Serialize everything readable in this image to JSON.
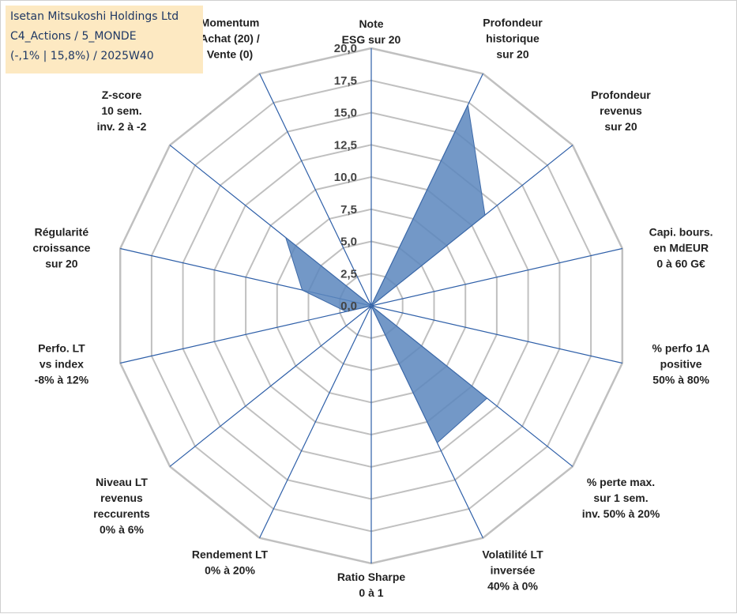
{
  "title": {
    "line1": "Isetan Mitsukoshi Holdings Ltd",
    "line2": "C4_Actions / 5_MONDE",
    "line3": "(-,1% | 15,8%) / 2025W40"
  },
  "colors": {
    "grid": "#c0c0c0",
    "spoke": "#2e5fa8",
    "fill": "#5b86bd",
    "fill_stroke": "#3e6aa8",
    "title_bg": "#fde9c2",
    "title_text": "#1f3864"
  },
  "chart_data": {
    "type": "radar",
    "title": "Isetan Mitsukoshi Holdings Ltd",
    "rmin": 0,
    "rmax": 20,
    "tick_step": 2.5,
    "ticks": [
      "0,0",
      "2,5",
      "5,0",
      "7,5",
      "10,0",
      "12,5",
      "15,0",
      "17,5",
      "20,0"
    ],
    "axes": [
      {
        "label": [
          "Note",
          "ESG sur 20"
        ],
        "value": 0
      },
      {
        "label": [
          "Profondeur",
          "historique",
          "sur 20"
        ],
        "value": 17.3
      },
      {
        "label": [
          "Profondeur",
          "revenus",
          "sur 20"
        ],
        "value": 11.3
      },
      {
        "label": [
          "Capi. bours.",
          "en MdEUR",
          "0 à 60 G€"
        ],
        "value": 0
      },
      {
        "label": [
          "% perfo 1A",
          "positive",
          "50% à 80%"
        ],
        "value": 0
      },
      {
        "label": [
          "% perte max.",
          "sur 1 sem.",
          "inv. 50% à 20%"
        ],
        "value": 11.5
      },
      {
        "label": [
          "Volatilité LT",
          "inversée",
          "40% à 0%"
        ],
        "value": 11.8
      },
      {
        "label": [
          "Ratio Sharpe",
          "0 à 1"
        ],
        "value": 0
      },
      {
        "label": [
          "Rendement LT",
          "0% à 20%"
        ],
        "value": 0
      },
      {
        "label": [
          "Niveau LT",
          "revenus",
          "reccurents",
          "0% à 6%"
        ],
        "value": 0
      },
      {
        "label": [
          "Perfo. LT",
          "vs index",
          "-8% à 12%"
        ],
        "value": 2.0
      },
      {
        "label": [
          "Régularité",
          "croissance",
          "sur 20"
        ],
        "value": 5.5
      },
      {
        "label": [
          "Z-score",
          "10 sem.",
          "inv. 2 à -2"
        ],
        "value": 8.5
      },
      {
        "label": [
          "Momentum",
          "Achat (20) /",
          "Vente (0)"
        ],
        "value": 0
      }
    ]
  }
}
